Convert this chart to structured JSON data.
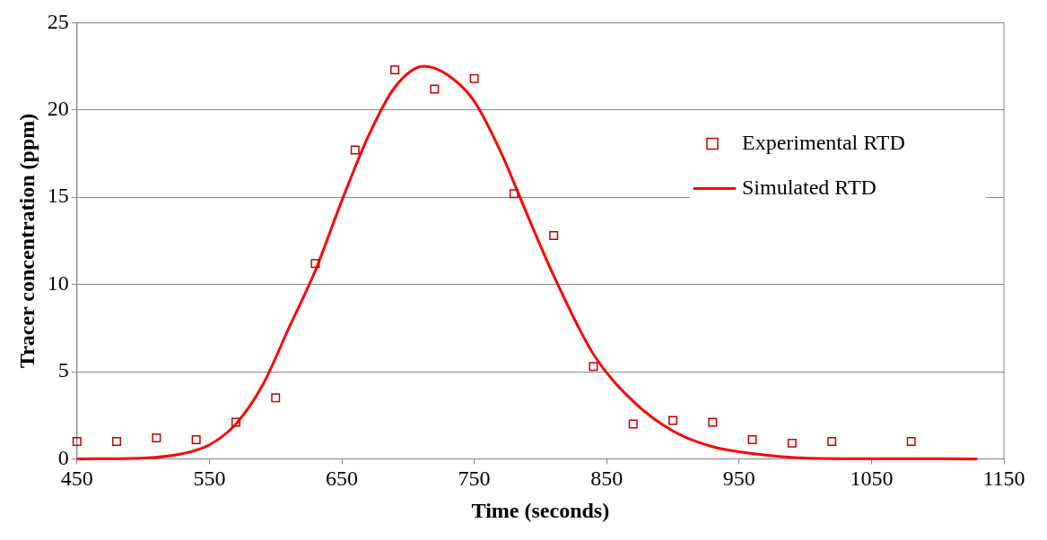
{
  "chart_data": {
    "type": "scatter",
    "xlabel": "Time (seconds)",
    "ylabel": "Tracer concentration (ppm)",
    "xlim": [
      450,
      1150
    ],
    "xticks": [
      450,
      550,
      650,
      750,
      850,
      950,
      1050,
      1150
    ],
    "ylim": [
      0,
      25
    ],
    "yticks": [
      0,
      5,
      10,
      15,
      20,
      25
    ],
    "grid": "y",
    "legend": "top right",
    "series": [
      {
        "name": "Experimental RTD",
        "marker": "square",
        "color": "#c00000",
        "x": [
          450,
          480,
          510,
          540,
          570,
          600,
          630,
          660,
          690,
          720,
          750,
          780,
          810,
          840,
          870,
          900,
          930,
          960,
          990,
          1020,
          1080
        ],
        "values": [
          1.0,
          1.0,
          1.2,
          1.1,
          2.1,
          3.5,
          11.2,
          17.7,
          22.3,
          21.2,
          21.8,
          15.2,
          12.8,
          5.3,
          2.0,
          2.2,
          2.1,
          1.1,
          0.9,
          1.0,
          1.0
        ]
      },
      {
        "name": "Simulated RTD",
        "type": "line",
        "marker": "none",
        "line_style": "solid",
        "color": "#ff0000",
        "x": [
          450,
          500,
          530,
          550,
          570,
          590,
          610,
          630,
          650,
          670,
          690,
          712,
          730,
          750,
          770,
          790,
          810,
          840,
          870,
          900,
          930,
          960,
          1000,
          1050,
          1130
        ],
        "values": [
          0,
          0.05,
          0.3,
          0.8,
          2.0,
          4.2,
          7.5,
          10.8,
          14.8,
          18.5,
          21.3,
          22.5,
          22.0,
          20.5,
          17.6,
          14.0,
          10.5,
          6.0,
          3.3,
          1.6,
          0.7,
          0.3,
          0.05,
          0.01,
          0
        ]
      }
    ]
  }
}
